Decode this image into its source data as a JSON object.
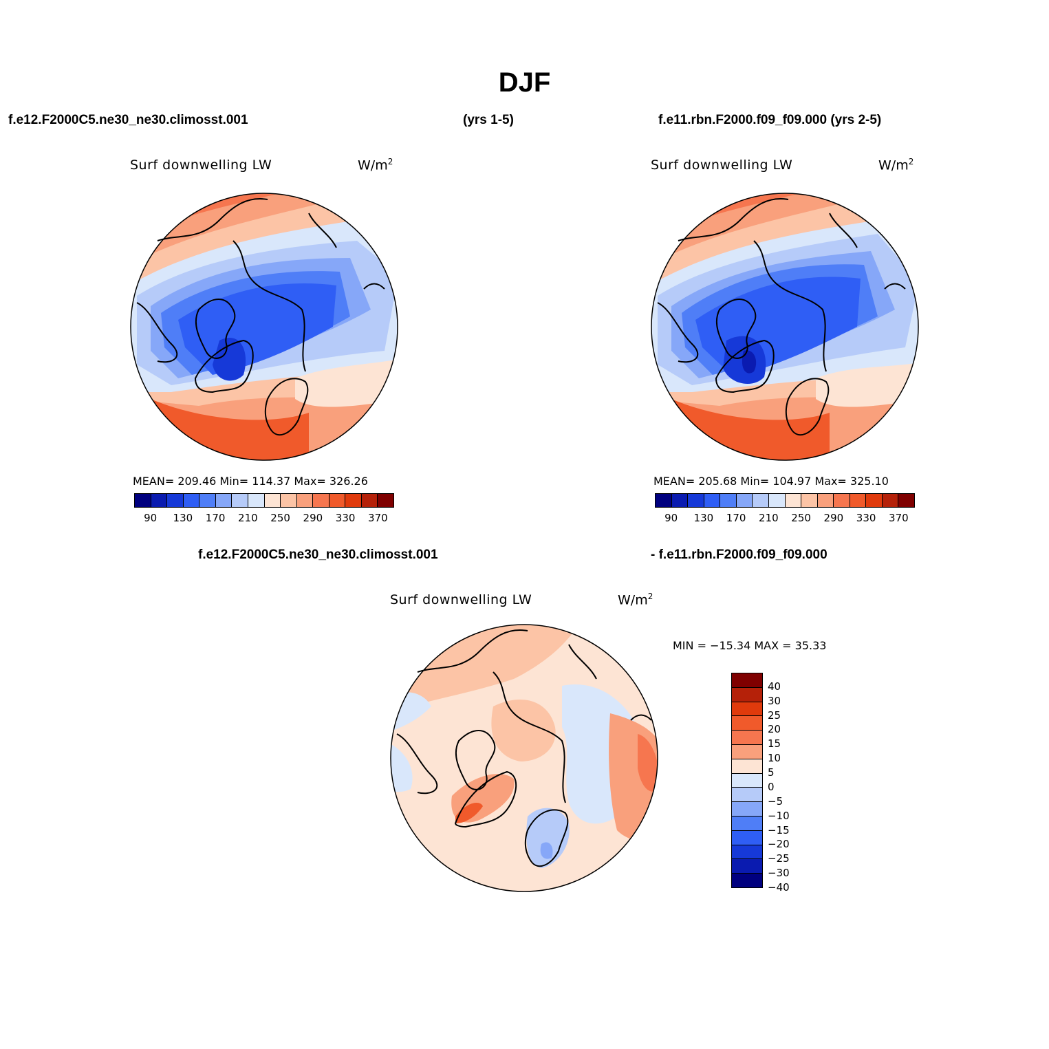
{
  "title": "DJF",
  "top": {
    "left_case": "f.e12.F2000C5.ne30_ne30.climosst.001",
    "left_years": "(yrs 1-5)",
    "right_case": "f.e11.rbn.F2000.f09_f09.000 (yrs 2-5)"
  },
  "panels": [
    {
      "subtitle": "Surf downwelling LW",
      "unit_base": "W/m",
      "unit_exp": "2",
      "stats": "MEAN= 209.46   Min= 114.37   Max= 326.26"
    },
    {
      "subtitle": "Surf downwelling LW",
      "unit_base": "W/m",
      "unit_exp": "2",
      "stats": "MEAN= 205.68   Min= 104.97   Max= 325.10"
    }
  ],
  "colorbar_top": {
    "colors": [
      "#00007f",
      "#0a1bb0",
      "#1639d8",
      "#2f5ef5",
      "#4f7ef7",
      "#86a7f8",
      "#b6cbf9",
      "#d9e7fb",
      "#fde4d4",
      "#fcc4a6",
      "#f9a07c",
      "#f6764f",
      "#f05a2b",
      "#e03a0c",
      "#b52109",
      "#7f0000"
    ],
    "labels": [
      "90",
      "130",
      "170",
      "210",
      "250",
      "290",
      "330",
      "370"
    ]
  },
  "diff": {
    "case_a": "f.e12.F2000C5.ne30_ne30.climosst.001",
    "case_b": "- f.e11.rbn.F2000.f09_f09.000",
    "subtitle": "Surf downwelling LW",
    "unit_base": "W/m",
    "unit_exp": "2",
    "minmax": "MIN = −15.34 MAX =   35.33",
    "colors": [
      "#7f0000",
      "#b52109",
      "#e03a0c",
      "#f05a2b",
      "#f6764f",
      "#f9a07c",
      "#fde4d4",
      "#d9e7fb",
      "#b6cbf9",
      "#86a7f8",
      "#4f7ef7",
      "#2f5ef5",
      "#1639d8",
      "#0a1bb0",
      "#00007f"
    ],
    "labels": [
      "40",
      "30",
      "25",
      "20",
      "15",
      "10",
      "5",
      "0",
      "−5",
      "−10",
      "−15",
      "−20",
      "−25",
      "−30",
      "−40"
    ]
  }
}
